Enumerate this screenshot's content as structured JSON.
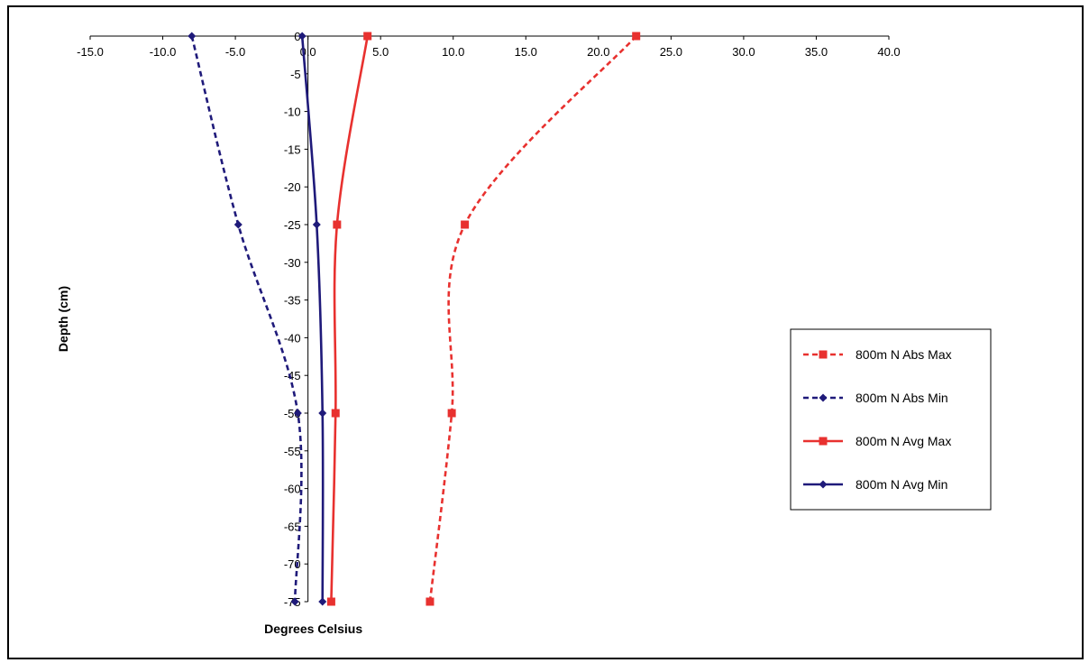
{
  "chart_data": {
    "type": "line",
    "xlabel": "Degrees Celsius",
    "ylabel": "Depth (cm)",
    "xlim": [
      -15,
      40
    ],
    "ylim": [
      -75,
      0
    ],
    "x_ticks": [
      "-15.0",
      "-10.0",
      "-5.0",
      "0.0",
      "5.0",
      "10.0",
      "15.0",
      "20.0",
      "25.0",
      "30.0",
      "35.0",
      "40.0"
    ],
    "y_ticks": [
      "0",
      "-5",
      "-10",
      "-15",
      "-20",
      "-25",
      "-30",
      "-35",
      "-40",
      "-45",
      "-50",
      "-55",
      "-60",
      "-65",
      "-70",
      "-75"
    ],
    "grid": false,
    "legend_position": "right",
    "series": [
      {
        "name": "800m N Abs Max",
        "color": "#e8312f",
        "dash": true,
        "marker": "square",
        "points": [
          [
            22.6,
            0
          ],
          [
            10.8,
            -25
          ],
          [
            9.9,
            -50
          ],
          [
            8.4,
            -75
          ]
        ]
      },
      {
        "name": "800m N Abs Min",
        "color": "#1f1a7a",
        "dash": true,
        "marker": "diamond",
        "points": [
          [
            -8.0,
            0
          ],
          [
            -4.8,
            -25
          ],
          [
            -0.7,
            -50
          ],
          [
            -0.9,
            -75
          ]
        ]
      },
      {
        "name": "800m N Avg Max",
        "color": "#e8312f",
        "dash": false,
        "marker": "square",
        "points": [
          [
            4.1,
            0
          ],
          [
            2.0,
            -25
          ],
          [
            1.9,
            -50
          ],
          [
            1.6,
            -75
          ]
        ]
      },
      {
        "name": "800m N Avg Min",
        "color": "#1f1a7a",
        "dash": false,
        "marker": "diamond",
        "points": [
          [
            -0.4,
            0
          ],
          [
            0.6,
            -25
          ],
          [
            1.0,
            -50
          ],
          [
            1.0,
            -75
          ]
        ]
      }
    ]
  }
}
